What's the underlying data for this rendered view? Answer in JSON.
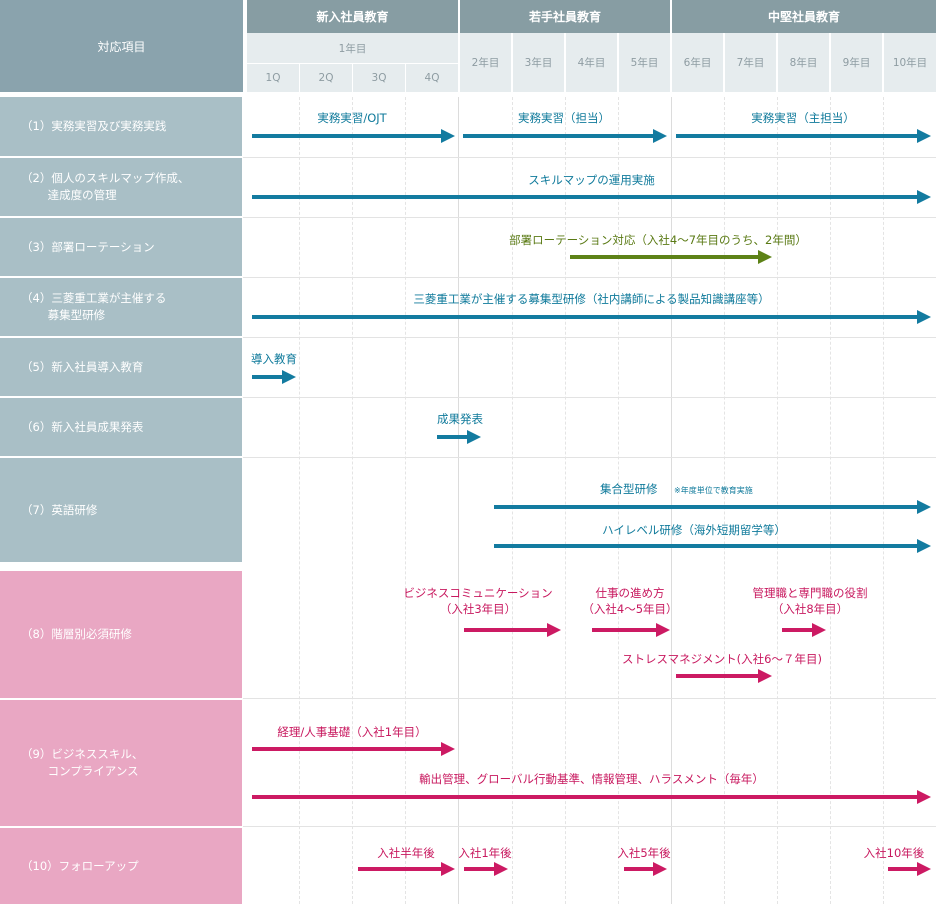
{
  "header": {
    "item_column": "対応項目",
    "groups": [
      "新入社員教育",
      "若手社員教育",
      "中堅社員教育"
    ],
    "year1": "1年目",
    "quarters": [
      "1Q",
      "2Q",
      "3Q",
      "4Q"
    ],
    "years": [
      "2年目",
      "3年目",
      "4年目",
      "5年目",
      "6年目",
      "7年目",
      "8年目",
      "9年目",
      "10年目"
    ]
  },
  "rows": [
    "（1）実務実習及び実務実践",
    "（2）個人のスキルマップ作成、\n　　 達成度の管理",
    "（3）部署ローテーション",
    "（4）三菱重工業が主催する\n　　 募集型研修",
    "（5）新入社員導入教育",
    "（6）新入社員成果発表",
    "（7）英語研修",
    "（8）階層別必須研修",
    "（9）ビジネススキル、\n　　 コンプライアンス",
    "（10）フォローアップ"
  ],
  "programs": {
    "ojt": "実務実習/OJT",
    "tanto": "実務実習（担当）",
    "shutanto": "実務実習（主担当）",
    "skillmap": "スキルマップの運用実施",
    "rotation": "部署ローテーション対応（入社4〜7年目のうち、2年間）",
    "bosyu": "三菱重工業が主催する募集型研修（社内講師による製品知識講座等）",
    "dounyu": "導入教育",
    "seika": "成果発表",
    "shugo": "集合型研修",
    "shugo_note": "※年度単位で教育実施",
    "highlevel": "ハイレベル研修（海外短期留学等）",
    "bizcomm_1": "ビジネスコミュニケーション",
    "bizcomm_2": "（入社3年目）",
    "shigoto_1": "仕事の進め方",
    "shigoto_2": "（入社4〜5年目）",
    "kanri_1": "管理職と専門職の役割",
    "kanri_2": "（入社8年目）",
    "stress": "ストレスマネジメント(入社6〜７年目)",
    "keiri": "経理/人事基礎（入社1年目）",
    "yushutsu": "輸出管理、グローバル行動基準、情報管理、ハラスメント（毎年）",
    "fu_half": "入社半年後",
    "fu_1": "入社1年後",
    "fu_5": "入社5年後",
    "fu_10": "入社10年後"
  },
  "colors": {
    "header": "#879da3",
    "header_sub": "#e6ecee",
    "row_gray": "#a9bfc6",
    "row_pink": "#e9a7c3",
    "arrow_blue": "#137ba0",
    "arrow_green": "#5d8217",
    "arrow_pink": "#cc1a63"
  }
}
